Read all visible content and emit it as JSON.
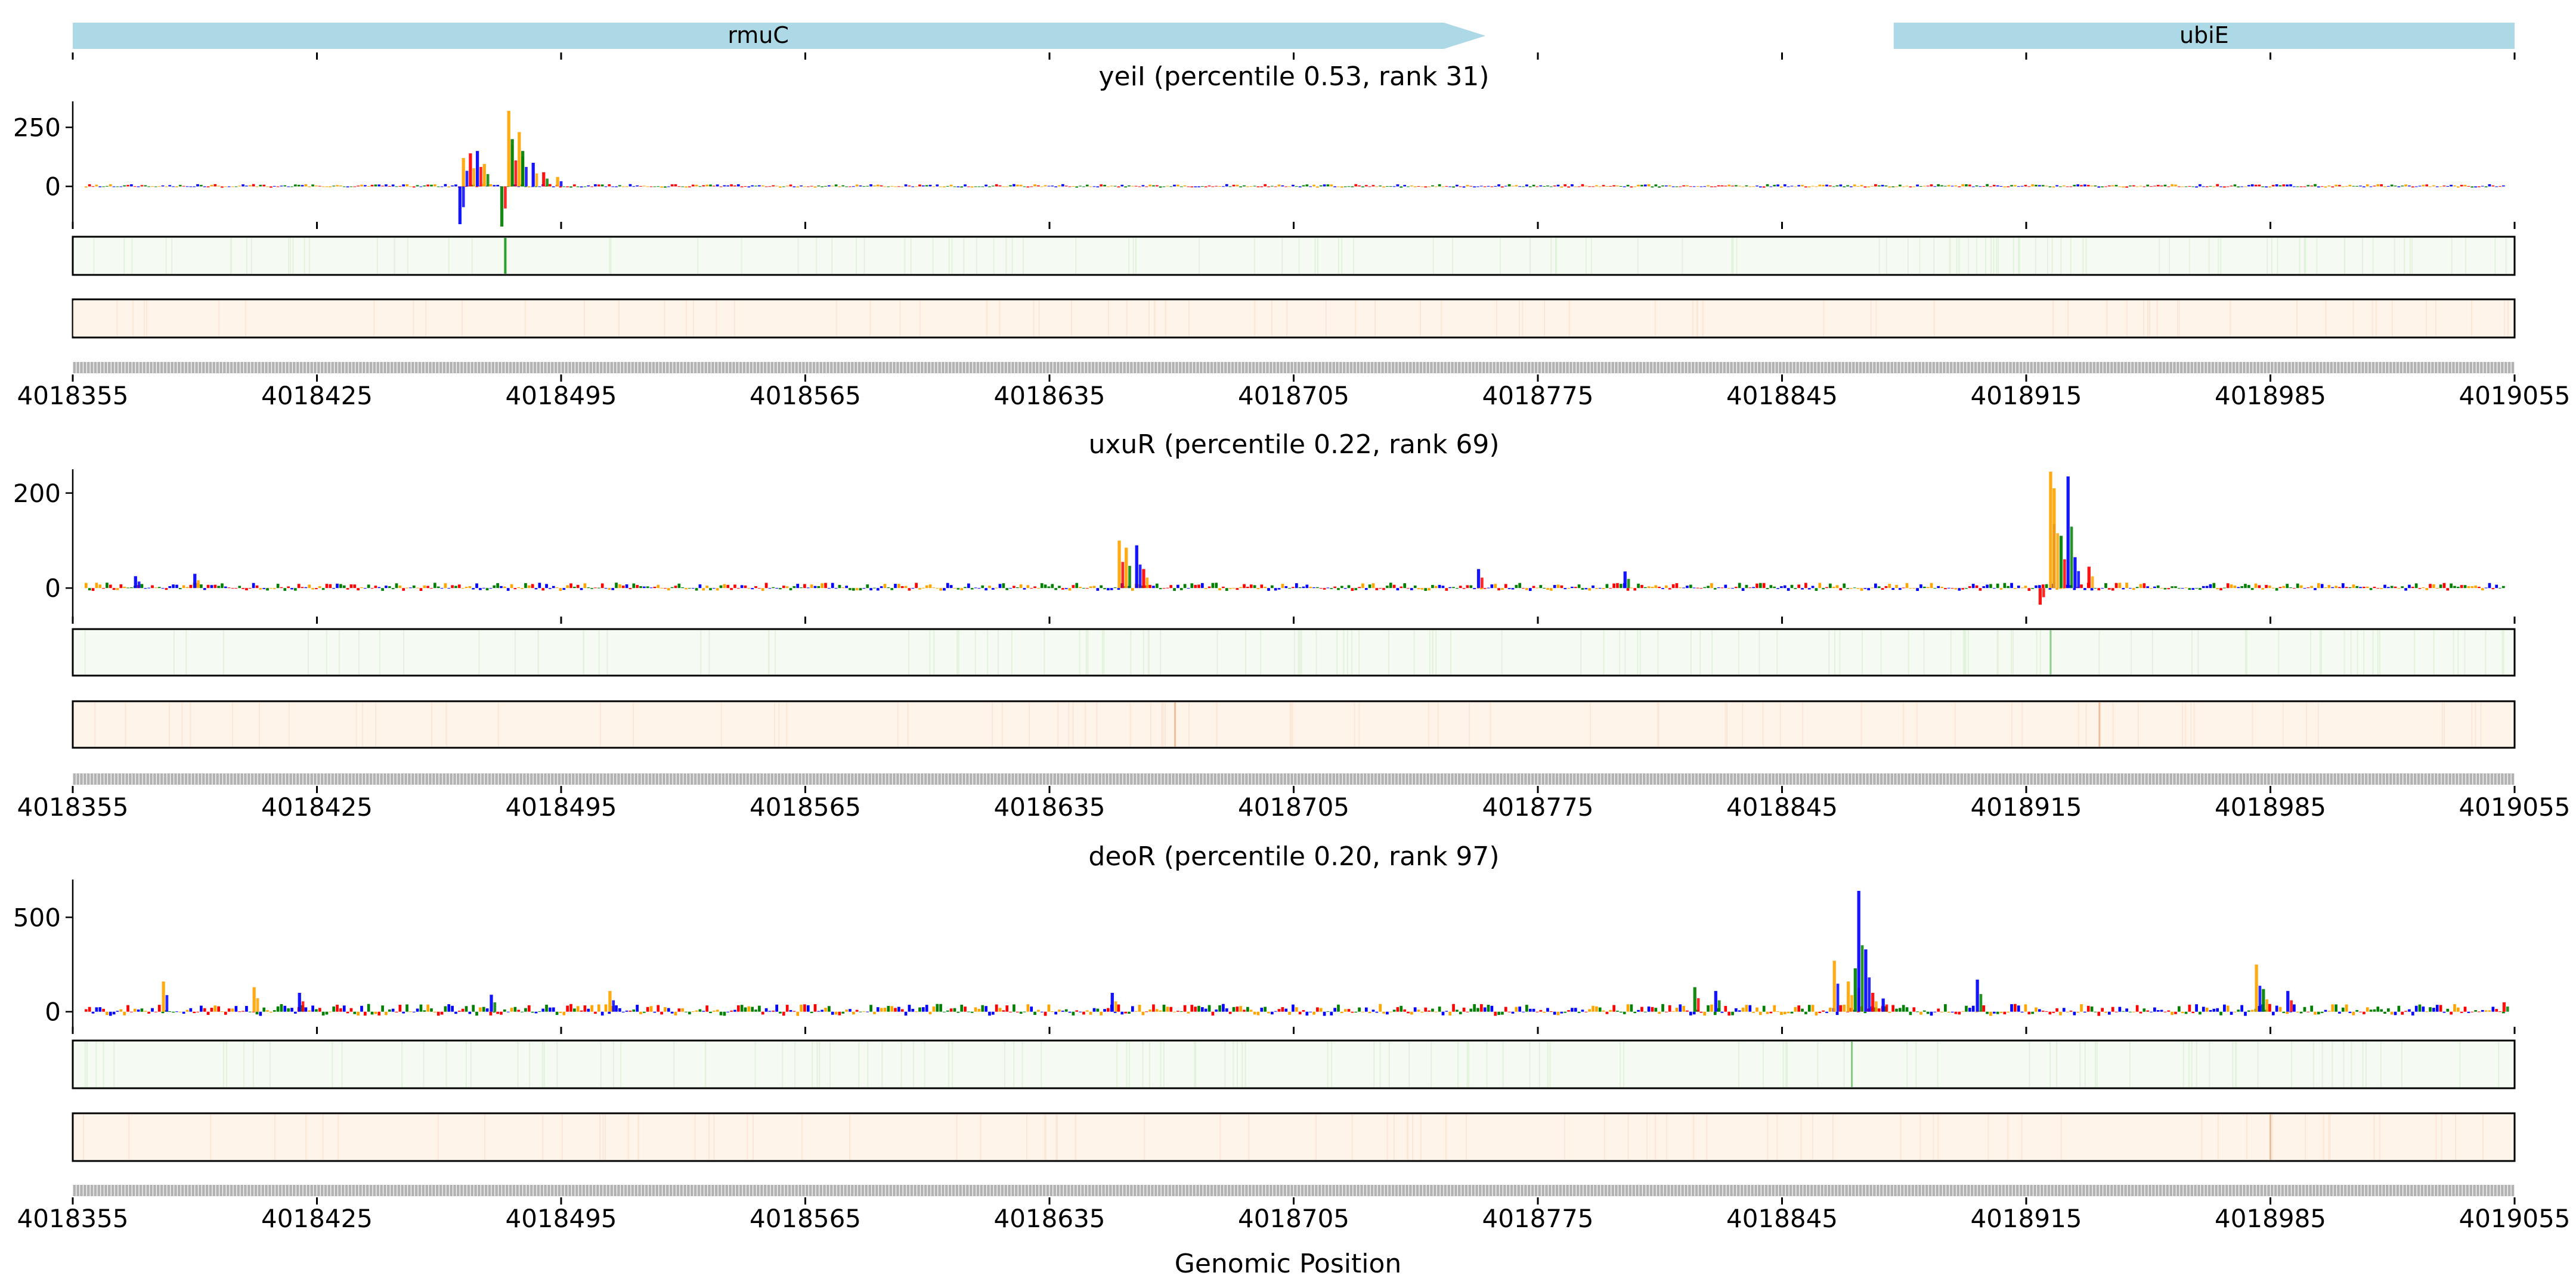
{
  "figure": {
    "xlabel": "Genomic Position"
  },
  "genes": [
    {
      "name": "rmuC",
      "start": 4018355,
      "end": 4018760,
      "strand": "+"
    },
    {
      "name": "ubiE",
      "start": 4018877,
      "end": 4019055,
      "strand": "-"
    }
  ],
  "x_range": [
    4018355,
    4019055
  ],
  "x_ticks": [
    4018355,
    4018425,
    4018495,
    4018565,
    4018635,
    4018705,
    4018775,
    4018845,
    4018915,
    4018985,
    4019055
  ],
  "colors": {
    "gene_arrow": "#add8e6",
    "track_green_bg": "#f5fbf2",
    "track_green_line": "#2ca02c",
    "track_orange_bg": "#fff4ea",
    "track_orange_line": "#e07b39",
    "base_A": "#008000",
    "base_C": "#0000ff",
    "base_G": "#ffa500",
    "base_T": "#ff0000"
  },
  "chart_data": [
    {
      "type": "bar",
      "title": "yeiI (percentile 0.53, rank 31)",
      "ylim": [
        -150,
        360
      ],
      "yticks": [
        0,
        250
      ],
      "peaks": [
        {
          "pos": 4018467,
          "value": 120,
          "base": "G"
        },
        {
          "pos": 4018469,
          "value": 140,
          "base": "T"
        },
        {
          "pos": 4018471,
          "value": 150,
          "base": "C"
        },
        {
          "pos": 4018473,
          "value": 95,
          "base": "G"
        },
        {
          "pos": 4018466,
          "value": -160,
          "base": "C"
        },
        {
          "pos": 4018480,
          "value": 320,
          "base": "G"
        },
        {
          "pos": 4018481,
          "value": 200,
          "base": "A"
        },
        {
          "pos": 4018483,
          "value": 230,
          "base": "G"
        },
        {
          "pos": 4018484,
          "value": 150,
          "base": "A"
        },
        {
          "pos": 4018487,
          "value": 100,
          "base": "C"
        },
        {
          "pos": 4018478,
          "value": -170,
          "base": "A"
        },
        {
          "pos": 4018490,
          "value": 60,
          "base": "T"
        },
        {
          "pos": 4018494,
          "value": 40,
          "base": "G"
        }
      ],
      "green_track_marks": [
        4018479
      ],
      "orange_track_marks": []
    },
    {
      "type": "bar",
      "title": "uxuR (percentile 0.22, rank 69)",
      "ylim": [
        -60,
        250
      ],
      "yticks": [
        0,
        200
      ],
      "peaks": [
        {
          "pos": 4018373,
          "value": 25,
          "base": "C"
        },
        {
          "pos": 4018390,
          "value": 30,
          "base": "C"
        },
        {
          "pos": 4018655,
          "value": 100,
          "base": "G"
        },
        {
          "pos": 4018657,
          "value": 85,
          "base": "G"
        },
        {
          "pos": 4018660,
          "value": 90,
          "base": "C"
        },
        {
          "pos": 4018662,
          "value": 40,
          "base": "T"
        },
        {
          "pos": 4018758,
          "value": 40,
          "base": "C"
        },
        {
          "pos": 4018800,
          "value": 35,
          "base": "C"
        },
        {
          "pos": 4018922,
          "value": 245,
          "base": "G"
        },
        {
          "pos": 4018923,
          "value": 210,
          "base": "G"
        },
        {
          "pos": 4018925,
          "value": 110,
          "base": "A"
        },
        {
          "pos": 4018927,
          "value": 235,
          "base": "C"
        },
        {
          "pos": 4018929,
          "value": 65,
          "base": "C"
        },
        {
          "pos": 4018933,
          "value": 45,
          "base": "T"
        },
        {
          "pos": 4018919,
          "value": -35,
          "base": "T"
        }
      ],
      "green_track_marks": [
        4018922
      ],
      "orange_track_marks": [
        4018671,
        4018936
      ]
    },
    {
      "type": "bar",
      "title": "deoR (percentile 0.20, rank 97)",
      "ylim": [
        -80,
        700
      ],
      "yticks": [
        0,
        500
      ],
      "peaks": [
        {
          "pos": 4018381,
          "value": 160,
          "base": "G"
        },
        {
          "pos": 4018407,
          "value": 130,
          "base": "G"
        },
        {
          "pos": 4018420,
          "value": 100,
          "base": "C"
        },
        {
          "pos": 4018475,
          "value": 90,
          "base": "C"
        },
        {
          "pos": 4018509,
          "value": 110,
          "base": "G"
        },
        {
          "pos": 4018653,
          "value": 100,
          "base": "C"
        },
        {
          "pos": 4018820,
          "value": 130,
          "base": "A"
        },
        {
          "pos": 4018826,
          "value": 110,
          "base": "C"
        },
        {
          "pos": 4018860,
          "value": 270,
          "base": "G"
        },
        {
          "pos": 4018864,
          "value": 160,
          "base": "G"
        },
        {
          "pos": 4018866,
          "value": 230,
          "base": "A"
        },
        {
          "pos": 4018867,
          "value": 640,
          "base": "C"
        },
        {
          "pos": 4018869,
          "value": 330,
          "base": "C"
        },
        {
          "pos": 4018871,
          "value": 100,
          "base": "T"
        },
        {
          "pos": 4018874,
          "value": 70,
          "base": "C"
        },
        {
          "pos": 4018901,
          "value": 170,
          "base": "C"
        },
        {
          "pos": 4018981,
          "value": 250,
          "base": "G"
        },
        {
          "pos": 4018983,
          "value": 120,
          "base": "A"
        },
        {
          "pos": 4018990,
          "value": 110,
          "base": "C"
        },
        {
          "pos": 4019052,
          "value": 50,
          "base": "T"
        }
      ],
      "green_track_marks": [
        4018865
      ],
      "orange_track_marks": [
        4018985
      ]
    }
  ]
}
